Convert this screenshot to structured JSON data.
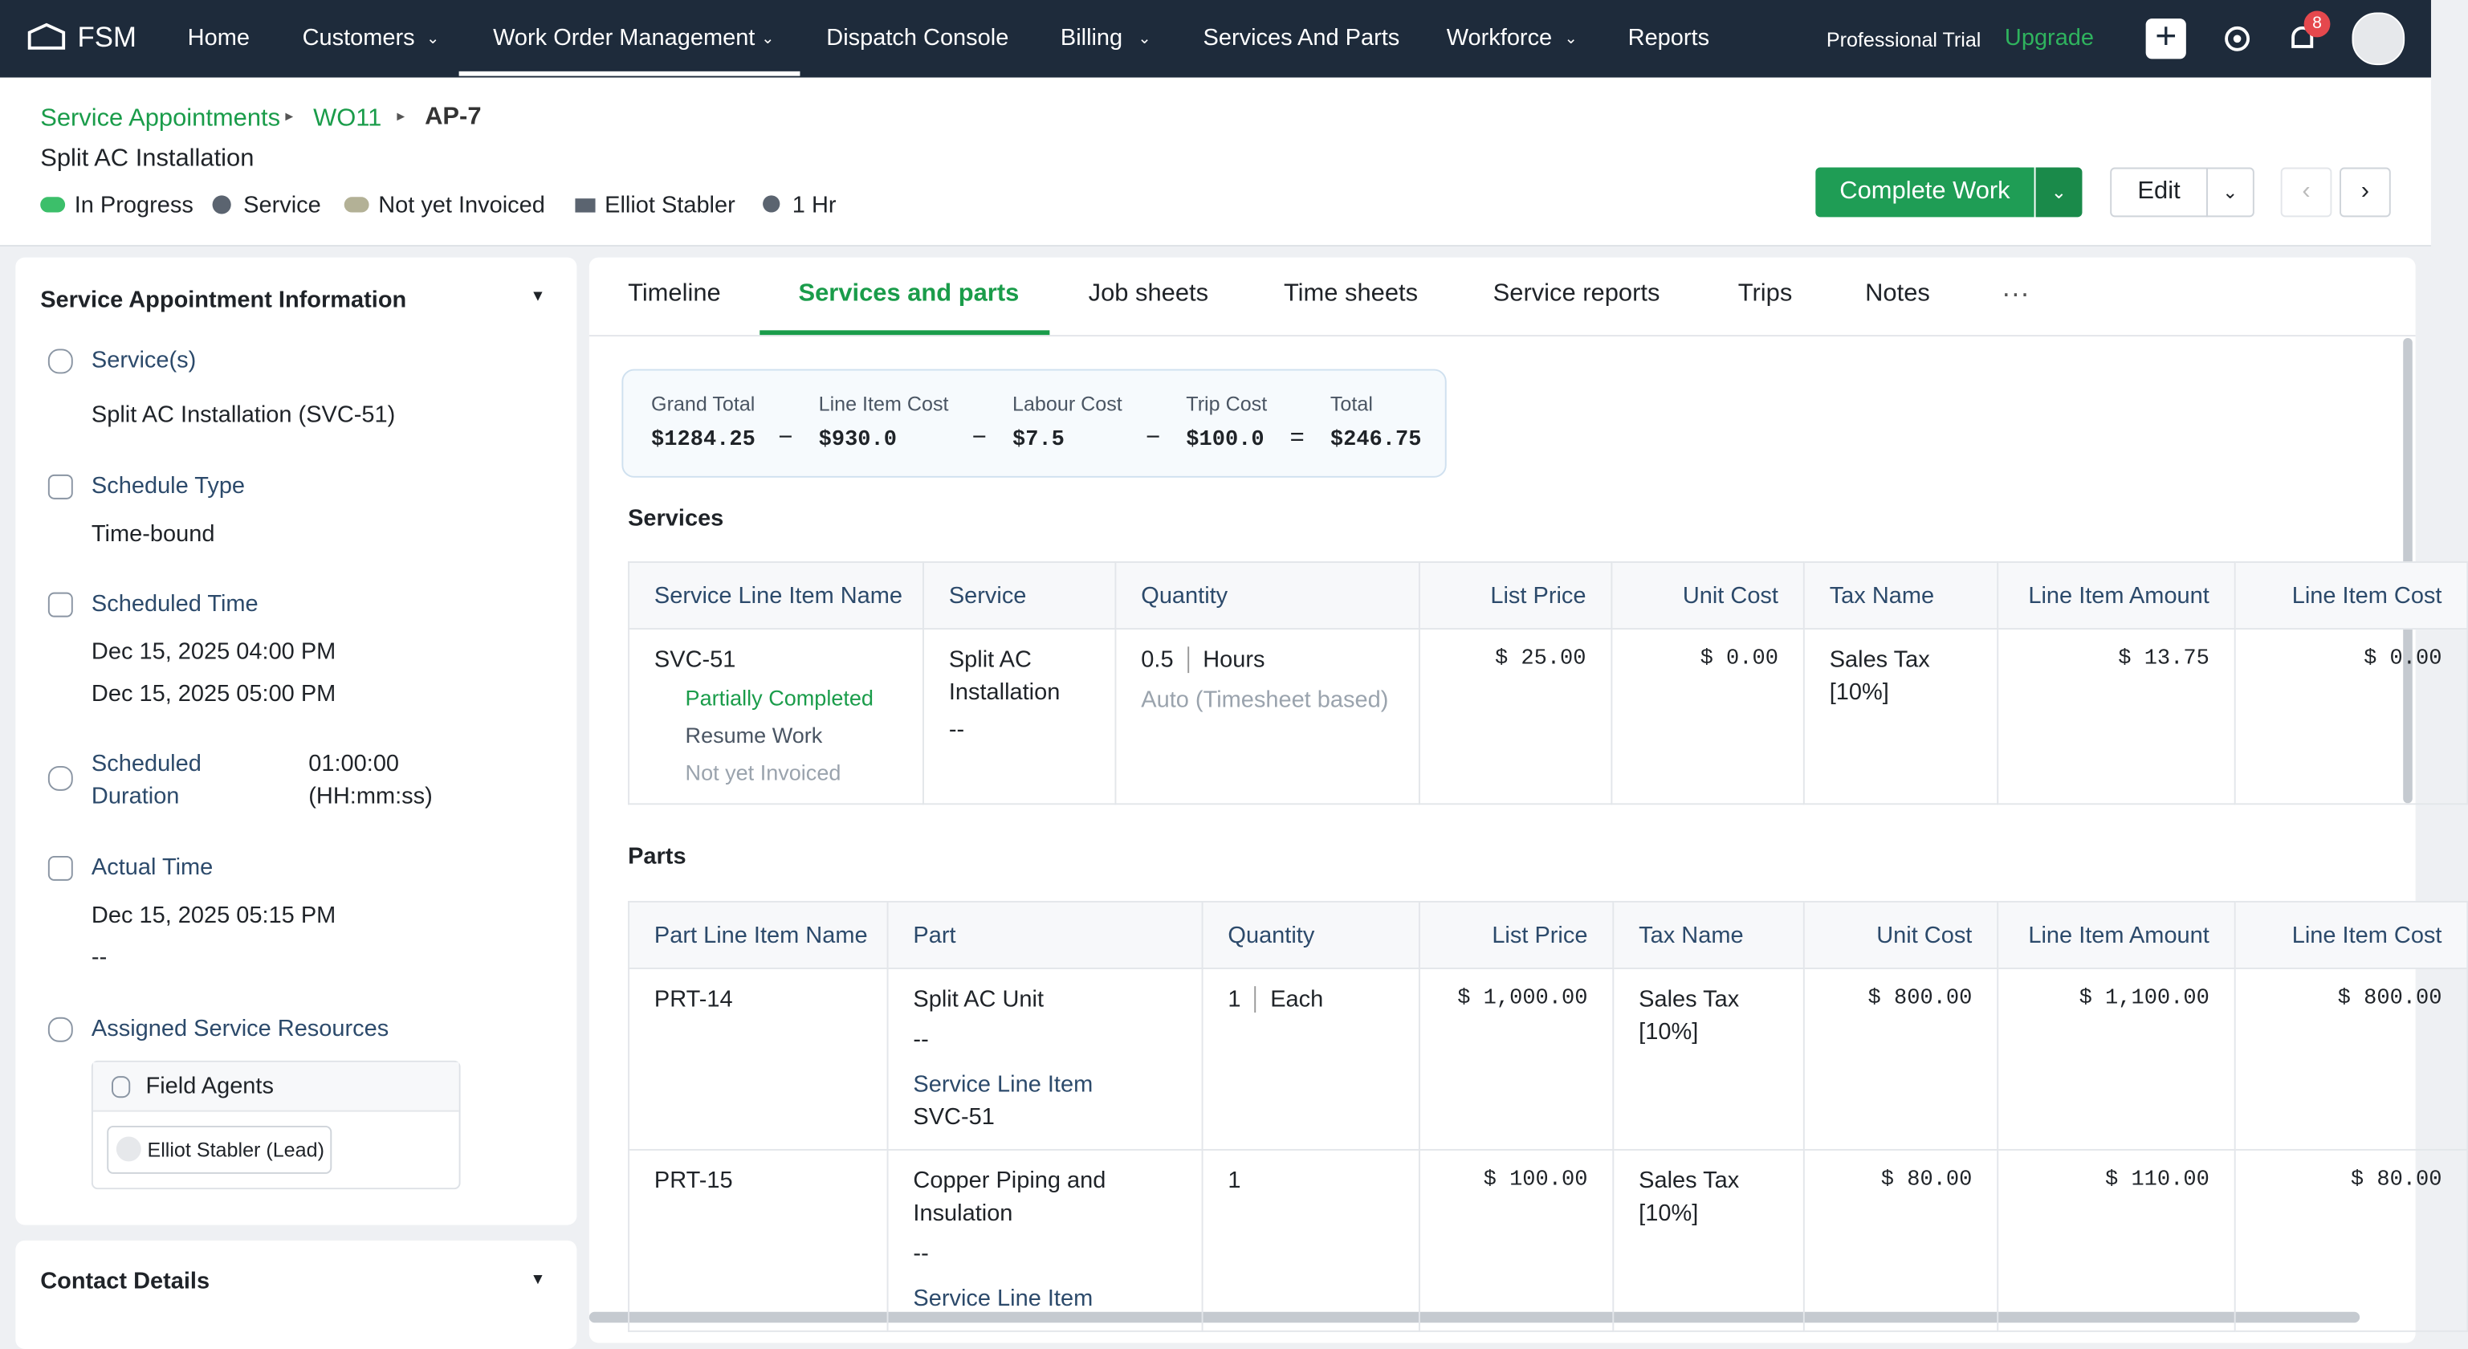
{
  "nav": {
    "brand": "FSM",
    "items": [
      "Home",
      "Customers",
      "Work Order Management",
      "Dispatch Console",
      "Billing",
      "Services And Parts",
      "Workforce",
      "Reports"
    ],
    "trial": "Professional Trial",
    "upgrade": "Upgrade",
    "notifications": "8"
  },
  "breadcrumb": [
    "Service Appointments",
    "WO11",
    "AP-7"
  ],
  "title": "Split AC Installation",
  "status": [
    "In Progress",
    "Service",
    "Not yet Invoiced",
    "Elliot Stabler",
    "1 Hr"
  ],
  "actions": {
    "complete": "Complete Work",
    "edit": "Edit"
  },
  "sidebar": {
    "heading": "Service Appointment Information",
    "services": {
      "label": "Service(s)",
      "value": "Split AC Installation (SVC-51)"
    },
    "schedule_type": {
      "label": "Schedule Type",
      "value": "Time-bound"
    },
    "scheduled_time": {
      "label": "Scheduled Time",
      "values": [
        "Dec 15, 2025 04:00 PM",
        "Dec 15, 2025 05:00 PM"
      ]
    },
    "scheduled_duration": {
      "label": "Scheduled Duration",
      "value": "01:00:00 (HH:mm:ss)"
    },
    "actual_time": {
      "label": "Actual Time",
      "values": [
        "Dec 15, 2025 05:15 PM",
        "--"
      ]
    },
    "resources": {
      "label": "Assigned Service Resources",
      "group": "Field Agents",
      "agent": "Elliot Stabler (Lead)"
    },
    "contact": "Contact Details"
  },
  "tabs": [
    "Timeline",
    "Services and parts",
    "Job sheets",
    "Time sheets",
    "Service reports",
    "Trips",
    "Notes"
  ],
  "summary": {
    "labels": [
      "Grand Total",
      "Line Item Cost",
      "Labour Cost",
      "Trip Cost",
      "Total"
    ],
    "values": [
      "$1284.25",
      "$930.0",
      "$7.5",
      "$100.0",
      "$246.75"
    ],
    "operators": [
      "−",
      "−",
      "−",
      "="
    ]
  },
  "services": {
    "heading": "Services",
    "headers": [
      "Service Line Item Name",
      "Service",
      "Quantity",
      "List Price",
      "Unit Cost",
      "Tax Name",
      "Line Item Amount",
      "Line Item Cost"
    ],
    "rows": [
      {
        "name": "SVC-51",
        "status": "Partially Completed",
        "action": "Resume Work",
        "invoice": "Not yet Invoiced",
        "service": "Split AC Installation",
        "service_note": "--",
        "quantity": "0.5",
        "unit": "Hours",
        "quantity_note": "Auto (Timesheet based)",
        "list_price": "$ 25.00",
        "unit_cost": "$ 0.00",
        "tax": "Sales Tax [10%]",
        "amount": "$ 13.75",
        "cost": "$ 0.00"
      }
    ]
  },
  "parts": {
    "heading": "Parts",
    "headers": [
      "Part Line Item Name",
      "Part",
      "Quantity",
      "List Price",
      "Tax Name",
      "Unit Cost",
      "Line Item Amount",
      "Line Item Cost"
    ],
    "rows": [
      {
        "name": "PRT-14",
        "part": "Split AC Unit",
        "part_note": "--",
        "link_label": "Service Line Item",
        "link": "SVC-51",
        "quantity": "1",
        "unit": "Each",
        "list_price": "$ 1,000.00",
        "tax": "Sales Tax [10%]",
        "unit_cost": "$ 800.00",
        "amount": "$ 1,100.00",
        "cost": "$ 800.00"
      },
      {
        "name": "PRT-15",
        "part": "Copper Piping and Insulation",
        "part_note": "--",
        "link_label": "Service Line Item",
        "quantity": "1",
        "list_price": "$ 100.00",
        "tax": "Sales Tax [10%]",
        "unit_cost": "$ 80.00",
        "amount": "$ 110.00",
        "cost": "$ 80.00"
      }
    ]
  }
}
